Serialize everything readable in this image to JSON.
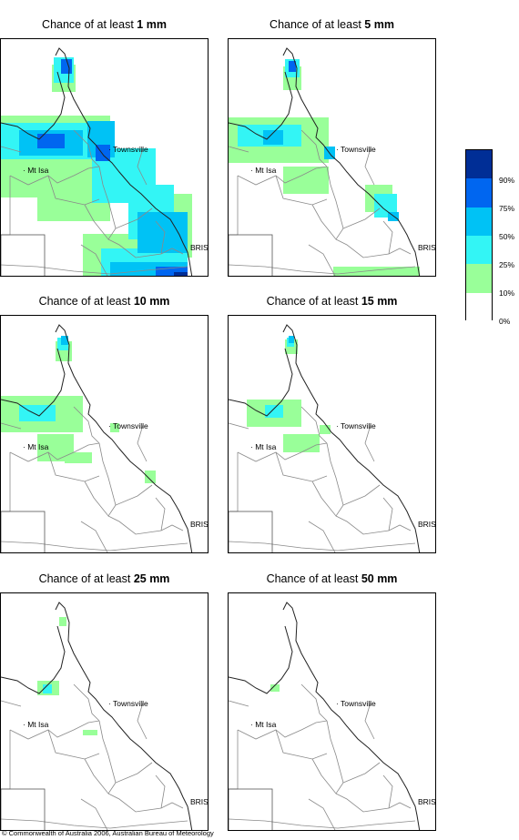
{
  "panels": [
    {
      "prefix": "Chance of at least",
      "amount": "1 mm",
      "level": 0
    },
    {
      "prefix": "Chance of at least",
      "amount": "5 mm",
      "level": 1
    },
    {
      "prefix": "Chance of at least",
      "amount": "10 mm",
      "level": 2
    },
    {
      "prefix": "Chance of at least",
      "amount": "15 mm",
      "level": 3
    },
    {
      "prefix": "Chance of at least",
      "amount": "25 mm",
      "level": 4
    },
    {
      "prefix": "Chance of at least",
      "amount": "50 mm",
      "level": 5
    }
  ],
  "cities": {
    "townsville": "Townsville",
    "mt_isa": "Mt Isa",
    "brisbane": "BRIS"
  },
  "legend": {
    "labels": [
      "90%",
      "75%",
      "50%",
      "25%",
      "10%",
      "0%"
    ],
    "colors": [
      "#002e96",
      "#0066f0",
      "#00c2f5",
      "#33f5f5",
      "#99ff99",
      "#ffffff"
    ]
  },
  "copyright": "© Commonwealth of Australia 2006, Australian Bureau of Meteorology"
}
